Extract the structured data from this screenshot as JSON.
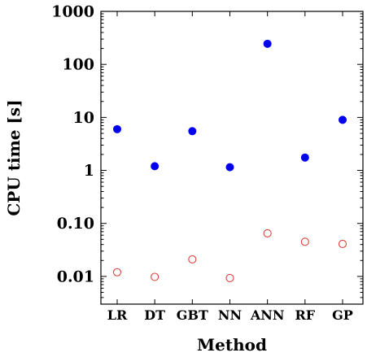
{
  "chart_data": {
    "type": "scatter",
    "title": "",
    "xlabel": "Method",
    "ylabel": "CPU time [s]",
    "yscale": "log",
    "ylim": [
      0.003,
      1000
    ],
    "grid": false,
    "categories": [
      "LR",
      "DT",
      "GBT",
      "NN",
      "ANN",
      "RF",
      "GP"
    ],
    "y_ticks": [
      {
        "value": 1000,
        "label": "1000"
      },
      {
        "value": 100,
        "label": "100"
      },
      {
        "value": 10,
        "label": "10"
      },
      {
        "value": 1,
        "label": "1"
      },
      {
        "value": 0.1,
        "label": "0.10"
      },
      {
        "value": 0.01,
        "label": "0.01"
      }
    ],
    "series": [
      {
        "marker": "filled-circle",
        "color": "#0000ee",
        "values": [
          6.0,
          1.2,
          5.5,
          1.15,
          245,
          1.75,
          9.0
        ]
      },
      {
        "marker": "open-circle",
        "color": "#d9433a",
        "values": [
          0.012,
          0.0098,
          0.021,
          0.0093,
          0.065,
          0.045,
          0.041
        ]
      }
    ]
  }
}
